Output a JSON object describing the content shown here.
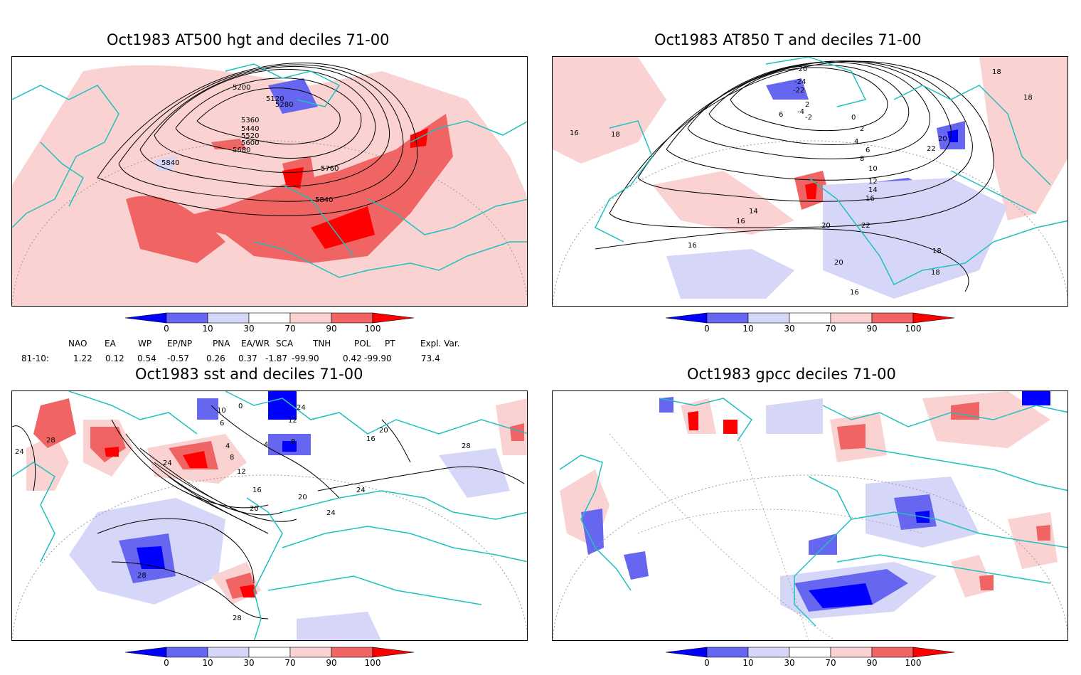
{
  "panels": [
    {
      "title": "Oct1983 AT500 hgt and deciles 71-00",
      "contour_labels": [
        "5120",
        "5200",
        "5280",
        "5360",
        "5440",
        "5520",
        "5600",
        "5680",
        "5760",
        "5840",
        "5840"
      ]
    },
    {
      "title": "Oct1983 AT850 T and deciles 71-00",
      "contour_labels": [
        "-20",
        "-24",
        "-22",
        "6",
        "2",
        "-4",
        "-2",
        "0",
        "2",
        "4",
        "6",
        "8",
        "10",
        "12",
        "14",
        "16",
        "18",
        "18",
        "16",
        "18",
        "20",
        "22",
        "14",
        "16",
        "20",
        "22",
        "20",
        "16",
        "16",
        "18",
        "18"
      ]
    },
    {
      "title": "Oct1983 sst and deciles 71-00",
      "contour_labels": [
        "10",
        "0",
        "6",
        "12",
        "4",
        "8",
        "12",
        "16",
        "20",
        "24",
        "24",
        "28",
        "24",
        "28",
        "28",
        "16",
        "20",
        "20",
        "24",
        "4",
        "8",
        "28",
        "24"
      ]
    },
    {
      "title": "Oct1983 gpcc deciles 71-00",
      "contour_labels": []
    }
  ],
  "colorbar": {
    "ticks": [
      "0",
      "10",
      "30",
      "70",
      "90",
      "100"
    ],
    "colors": {
      "dark_blue": "#0000ff",
      "mid_blue": "#6666f0",
      "light_blue": "#d6d6f8",
      "white": "#ffffff",
      "light_red": "#fad2d2",
      "mid_red": "#f06464",
      "dark_red": "#ff0000"
    }
  },
  "indices": {
    "row_label": "81-10:",
    "headers": [
      "NAO",
      "EA",
      "WP",
      "EP/NP",
      "PNA",
      "EA/WR",
      "SCA",
      "TNH",
      "POL",
      "PT",
      "Expl. Var."
    ],
    "values": [
      "1.22",
      "0.12",
      "0.54",
      "-0.57",
      "0.26",
      "0.37",
      "-1.87",
      "-99.90",
      "0.42",
      "-99.90",
      "73.4"
    ]
  },
  "colors": {
    "coast": "#20c0c0",
    "contour": "#000000",
    "grid": "#999999"
  }
}
